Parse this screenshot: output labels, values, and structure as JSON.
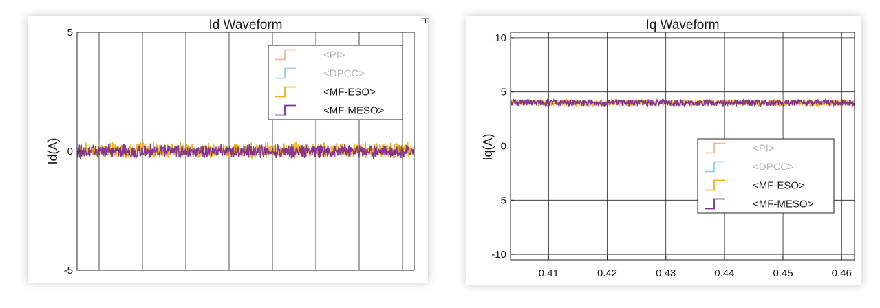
{
  "chart_data": [
    {
      "type": "line",
      "title": "Id Waveform",
      "xlabel": "",
      "ylabel": "Id(A)",
      "ylim": [
        -5,
        5
      ],
      "xlim": [
        0.4035,
        0.4622
      ],
      "y_ticks": [
        "-5",
        "0",
        "5"
      ],
      "x_ticks": [],
      "grid": "vertical",
      "legend_position": "top-right",
      "legend": [
        {
          "name": "<PI>",
          "color": "#f5b89b",
          "dimmed": true
        },
        {
          "name": "<DPCC>",
          "color": "#9fcbe8",
          "dimmed": true
        },
        {
          "name": "<MF-ESO>",
          "color": "#edb120",
          "dimmed": false
        },
        {
          "name": "<MF-MESO>",
          "color": "#7e2f8e",
          "dimmed": false
        }
      ],
      "series": [
        {
          "name": "<MF-ESO>",
          "color": "#edb120",
          "mean": 0.05,
          "ripple_amplitude": 0.35
        },
        {
          "name": "<MF-MESO>",
          "color": "#7e2f8e",
          "mean": 0.0,
          "ripple_amplitude": 0.3
        }
      ],
      "corner_mark": "F"
    },
    {
      "type": "line",
      "title": "Iq Waveform",
      "xlabel": "",
      "ylabel": "Iq(A)",
      "ylim": [
        -10.5,
        10.5
      ],
      "xlim": [
        0.4035,
        0.4622
      ],
      "y_ticks": [
        "-10",
        "-5",
        "0",
        "5",
        "10"
      ],
      "x_ticks": [
        "0.41",
        "0.42",
        "0.43",
        "0.44",
        "0.45",
        "0.46"
      ],
      "grid": "both",
      "legend_position": "lower-right",
      "legend": [
        {
          "name": "<PI>",
          "color": "#f5b89b",
          "dimmed": true
        },
        {
          "name": "<DPCC>",
          "color": "#9fcbe8",
          "dimmed": true
        },
        {
          "name": "<MF-ESO>",
          "color": "#edb120",
          "dimmed": false
        },
        {
          "name": "<MF-MESO>",
          "color": "#7e2f8e",
          "dimmed": false
        }
      ],
      "series": [
        {
          "name": "<MF-ESO>",
          "color": "#edb120",
          "mean": 4.0,
          "ripple_amplitude": 0.3
        },
        {
          "name": "<MF-MESO>",
          "color": "#7e2f8e",
          "mean": 4.0,
          "ripple_amplitude": 0.3
        }
      ]
    }
  ]
}
